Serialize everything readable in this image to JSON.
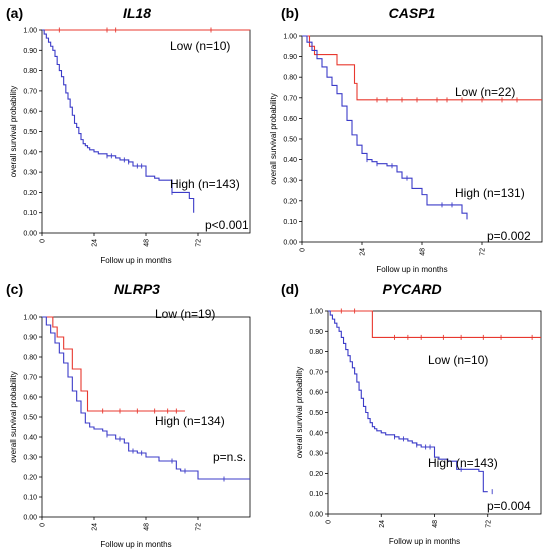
{
  "chart_data": [
    {
      "panel": "(a)",
      "title": "IL18",
      "type": "line",
      "xlabel": "Follow up in months",
      "ylabel": "overall survival probability",
      "xlim": [
        0,
        96
      ],
      "ylim": [
        0,
        1.0
      ],
      "xticks": [
        "0",
        "24",
        "48",
        "72"
      ],
      "yticks": [
        "0.00",
        "0.10",
        "0.20",
        "0.30",
        "0.40",
        "0.50",
        "0.60",
        "0.70",
        "0.80",
        "0.90",
        "1.00"
      ],
      "series": [
        {
          "name": "Low (n=10)",
          "color": "#e8382f",
          "x": [
            0,
            96
          ],
          "y": [
            1.0,
            1.0
          ],
          "censor_x": [
            8,
            30,
            34,
            78
          ]
        },
        {
          "name": "High (n=143)",
          "color": "#3b3bc8",
          "x": [
            0,
            1,
            2,
            3,
            4,
            5,
            6,
            7,
            8,
            9,
            10,
            11,
            12,
            13,
            14,
            15,
            16,
            17,
            18,
            19,
            20,
            21,
            22,
            24,
            26,
            28,
            30,
            32,
            34,
            36,
            38,
            40,
            42,
            48,
            50,
            52,
            54,
            56,
            58,
            60,
            62,
            64,
            66,
            68,
            70
          ],
          "y": [
            1.0,
            0.98,
            0.96,
            0.94,
            0.92,
            0.9,
            0.87,
            0.83,
            0.8,
            0.77,
            0.73,
            0.69,
            0.66,
            0.62,
            0.58,
            0.54,
            0.52,
            0.49,
            0.46,
            0.44,
            0.43,
            0.42,
            0.41,
            0.4,
            0.39,
            0.39,
            0.38,
            0.38,
            0.37,
            0.36,
            0.36,
            0.35,
            0.33,
            0.28,
            0.28,
            0.27,
            0.26,
            0.26,
            0.26,
            0.2,
            0.2,
            0.2,
            0.2,
            0.17,
            0.1
          ],
          "censor_x": [
            30,
            32,
            38,
            40,
            44,
            46,
            60
          ]
        }
      ],
      "annotations": [
        "Low (n=10)",
        "High (n=143)",
        "p<0.001"
      ]
    },
    {
      "panel": "(b)",
      "title": "CASP1",
      "type": "line",
      "xlabel": "Follow up in months",
      "ylabel": "overall survival probability",
      "xlim": [
        0,
        96
      ],
      "ylim": [
        0,
        1.0
      ],
      "xticks": [
        "0",
        "24",
        "48",
        "72"
      ],
      "yticks": [
        "0.00",
        "0.10",
        "0.20",
        "0.30",
        "0.40",
        "0.50",
        "0.60",
        "0.70",
        "0.80",
        "0.90",
        "1.00"
      ],
      "series": [
        {
          "name": "Low (n=22)",
          "color": "#e8382f",
          "x": [
            0,
            3,
            5,
            9,
            14,
            18,
            21,
            22,
            24,
            96
          ],
          "y": [
            1.0,
            0.95,
            0.91,
            0.91,
            0.86,
            0.86,
            0.77,
            0.69,
            0.69,
            0.69
          ],
          "censor_x": [
            30,
            34,
            40,
            46,
            54,
            58,
            64,
            72,
            80,
            86
          ]
        },
        {
          "name": "High (n=131)",
          "color": "#3b3bc8",
          "x": [
            0,
            2,
            4,
            6,
            8,
            10,
            12,
            14,
            16,
            18,
            20,
            22,
            24,
            26,
            28,
            30,
            34,
            38,
            40,
            44,
            48,
            50,
            54,
            58,
            62,
            64,
            66
          ],
          "y": [
            1.0,
            0.97,
            0.93,
            0.89,
            0.85,
            0.8,
            0.76,
            0.72,
            0.66,
            0.59,
            0.52,
            0.47,
            0.43,
            0.4,
            0.39,
            0.38,
            0.37,
            0.34,
            0.31,
            0.26,
            0.23,
            0.18,
            0.18,
            0.18,
            0.18,
            0.14,
            0.11
          ],
          "censor_x": [
            26,
            30,
            36,
            42,
            56,
            60
          ]
        }
      ],
      "annotations": [
        "Low (n=22)",
        "High (n=131)",
        "p=0.002"
      ]
    },
    {
      "panel": "(c)",
      "title": "NLRP3",
      "type": "line",
      "xlabel": "Follow up in months",
      "ylabel": "overall survival probability",
      "xlim": [
        0,
        96
      ],
      "ylim": [
        0,
        1.0
      ],
      "xticks": [
        "0",
        "24",
        "48",
        "72"
      ],
      "yticks": [
        "0.00",
        "0.10",
        "0.20",
        "0.30",
        "0.40",
        "0.50",
        "0.60",
        "0.70",
        "0.80",
        "0.90",
        "1.00"
      ],
      "series": [
        {
          "name": "Low (n=19)",
          "color": "#e8382f",
          "x": [
            0,
            5,
            7,
            10,
            14,
            18,
            21,
            24,
            66
          ],
          "y": [
            1.0,
            0.95,
            0.9,
            0.84,
            0.74,
            0.63,
            0.53,
            0.53,
            0.53
          ],
          "censor_x": [
            28,
            36,
            44,
            52,
            58,
            62
          ]
        },
        {
          "name": "High (n=134)",
          "color": "#3b3bc8",
          "x": [
            0,
            2,
            4,
            6,
            8,
            10,
            12,
            14,
            16,
            18,
            20,
            22,
            24,
            26,
            28,
            30,
            34,
            38,
            40,
            44,
            48,
            50,
            54,
            58,
            62,
            64,
            70,
            72,
            96
          ],
          "y": [
            1.0,
            0.96,
            0.92,
            0.87,
            0.82,
            0.77,
            0.7,
            0.63,
            0.58,
            0.52,
            0.47,
            0.45,
            0.44,
            0.44,
            0.43,
            0.41,
            0.39,
            0.37,
            0.33,
            0.32,
            0.3,
            0.3,
            0.28,
            0.28,
            0.24,
            0.23,
            0.23,
            0.19,
            0.19
          ],
          "censor_x": [
            30,
            36,
            42,
            46,
            60,
            66,
            84
          ]
        }
      ],
      "annotations": [
        "Low (n=19)",
        "High (n=134)",
        "p=n.s."
      ]
    },
    {
      "panel": "(d)",
      "title": "PYCARD",
      "type": "line",
      "xlabel": "Follow up in months",
      "ylabel": "overall survival probability",
      "xlim": [
        0,
        96
      ],
      "ylim": [
        0,
        1.0
      ],
      "xticks": [
        "0",
        "24",
        "48",
        "72"
      ],
      "yticks": [
        "0.00",
        "0.10",
        "0.20",
        "0.30",
        "0.40",
        "0.50",
        "0.60",
        "0.70",
        "0.80",
        "0.90",
        "1.00"
      ],
      "series": [
        {
          "name": "Low (n=10)",
          "color": "#e8382f",
          "x": [
            0,
            20,
            96
          ],
          "y": [
            1.0,
            0.87,
            0.87
          ],
          "censor_x": [
            6,
            12,
            30,
            36,
            42,
            52,
            60,
            70,
            78,
            92
          ]
        },
        {
          "name": "High (n=143)",
          "color": "#3b3bc8",
          "x": [
            0,
            1,
            2,
            3,
            4,
            5,
            6,
            7,
            8,
            9,
            10,
            11,
            12,
            13,
            14,
            15,
            16,
            17,
            18,
            19,
            20,
            21,
            22,
            24,
            26,
            28,
            30,
            32,
            34,
            36,
            38,
            40,
            42,
            48,
            50,
            52,
            54,
            56,
            58,
            60,
            62,
            64,
            66,
            68,
            70,
            72
          ],
          "y": [
            1.0,
            0.98,
            0.96,
            0.94,
            0.92,
            0.9,
            0.87,
            0.84,
            0.81,
            0.78,
            0.75,
            0.72,
            0.69,
            0.65,
            0.61,
            0.57,
            0.53,
            0.5,
            0.47,
            0.45,
            0.43,
            0.42,
            0.41,
            0.4,
            0.39,
            0.39,
            0.38,
            0.37,
            0.37,
            0.36,
            0.35,
            0.34,
            0.33,
            0.28,
            0.27,
            0.27,
            0.26,
            0.26,
            0.22,
            0.22,
            0.22,
            0.22,
            0.22,
            0.21,
            0.11,
            0.11
          ],
          "censor_x": [
            30,
            34,
            40,
            44,
            46,
            60,
            74
          ]
        }
      ],
      "annotations": [
        "Low (n=10)",
        "High (n=143)",
        "p=0.004"
      ]
    }
  ]
}
